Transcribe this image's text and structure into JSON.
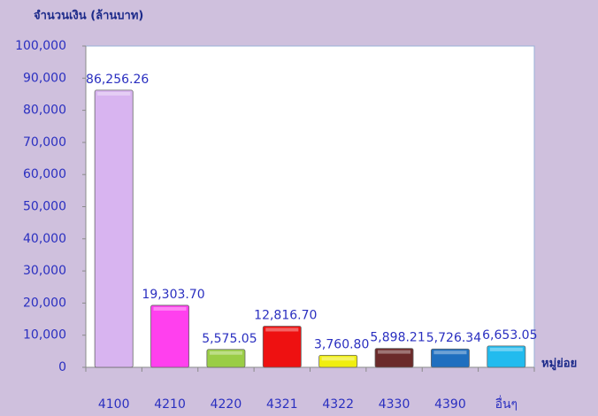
{
  "chart_data": {
    "type": "bar",
    "y_label": "จำนวนเงิน (ล้านบาท)",
    "x_label": "หมู่ย่อย",
    "categories": [
      "4100",
      "4210",
      "4220",
      "4321",
      "4322",
      "4330",
      "4390",
      "อื่นๆ"
    ],
    "values": [
      86256.26,
      19303.7,
      5575.05,
      12816.7,
      3760.8,
      5898.21,
      5726.34,
      6653.05
    ],
    "value_labels": [
      "86,256.26",
      "19,303.70",
      "5,575.05",
      "12,816.70",
      "3,760.80",
      "5,898.21",
      "5,726.34",
      "6,653.05"
    ],
    "colors": [
      "#d8b4f0",
      "#ff40ee",
      "#9acd46",
      "#ee1111",
      "#f0ee10",
      "#6b2a2a",
      "#1f6fbf",
      "#22bbee"
    ],
    "ylim": [
      0,
      100000
    ],
    "yticks": [
      0,
      {
        "value": 10000,
        "label": "10,000"
      },
      {
        "value": 20000,
        "label": "20,000"
      },
      {
        "value": 30000,
        "label": "30,000"
      },
      {
        "value": 40000,
        "label": "40,000"
      },
      {
        "value": 50000,
        "label": "50,000"
      },
      {
        "value": 60000,
        "label": "60,000"
      },
      {
        "value": 70000,
        "label": "70,000"
      },
      {
        "value": 80000,
        "label": "80,000"
      },
      {
        "value": 90000,
        "label": "90,000"
      },
      {
        "value": 100000,
        "label": "100,000"
      }
    ],
    "grid": false
  }
}
